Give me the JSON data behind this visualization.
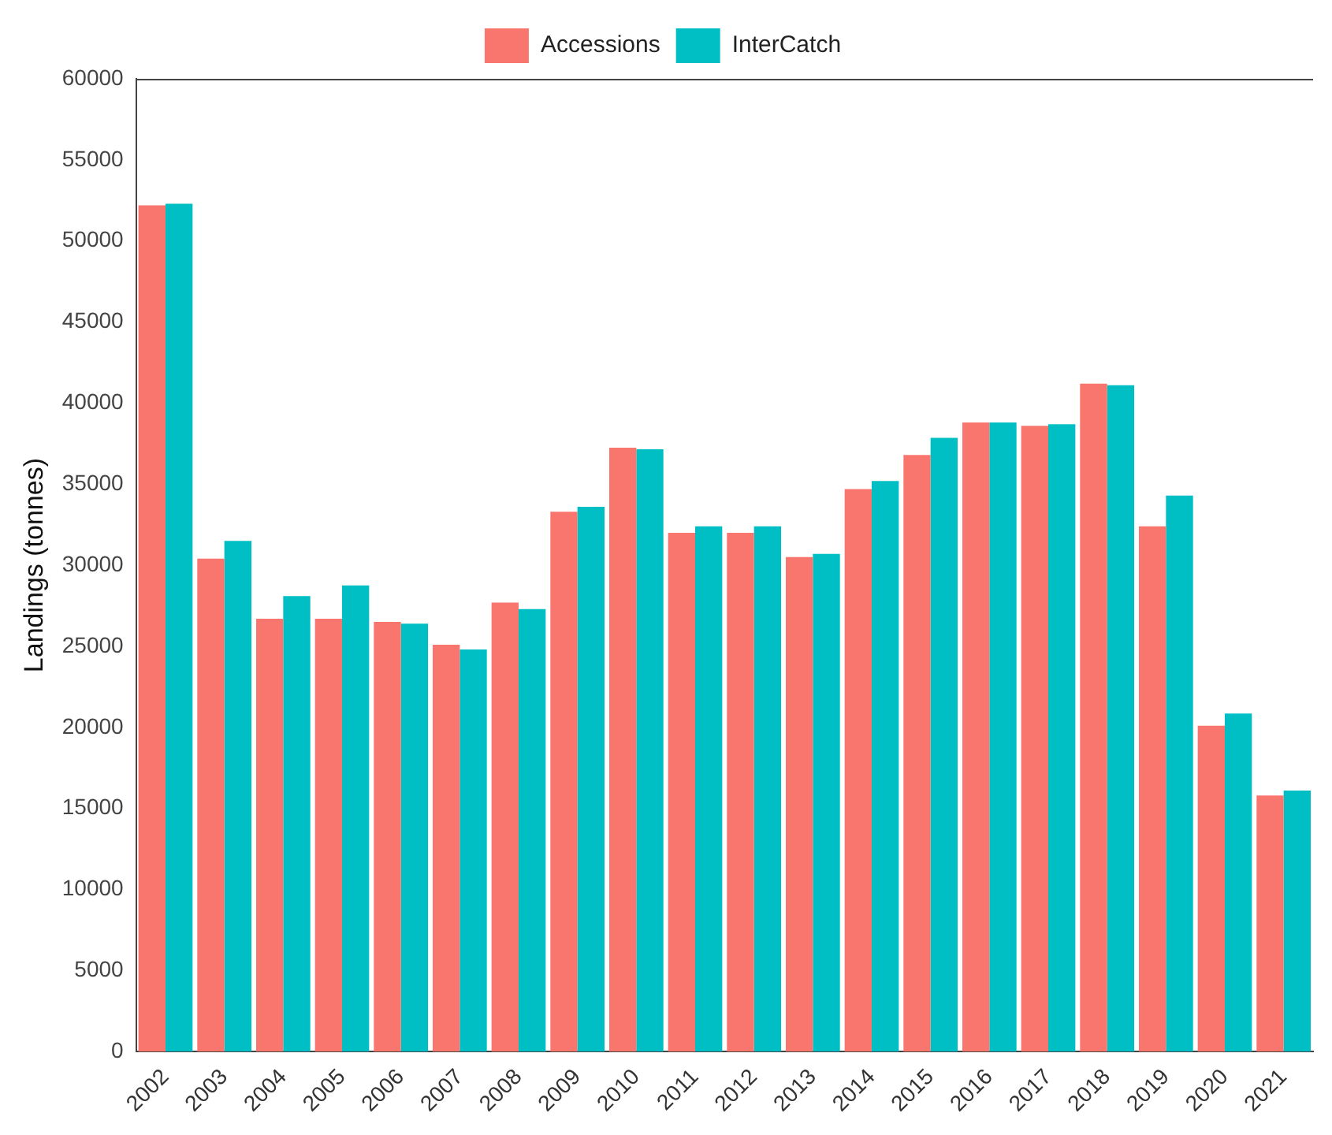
{
  "chart_data": {
    "type": "bar",
    "ylabel": "Landings (tonnes)",
    "categories": [
      "2002",
      "2003",
      "2004",
      "2005",
      "2006",
      "2007",
      "2008",
      "2009",
      "2010",
      "2011",
      "2012",
      "2013",
      "2014",
      "2015",
      "2016",
      "2017",
      "2018",
      "2019",
      "2020",
      "2021"
    ],
    "series": [
      {
        "name": "Accessions",
        "color": "#f8766d",
        "values": [
          52200,
          30400,
          26700,
          26700,
          26500,
          25100,
          27700,
          33300,
          37250,
          32000,
          32000,
          30500,
          34700,
          36800,
          38800,
          38600,
          41200,
          32400,
          20100,
          15800
        ]
      },
      {
        "name": "InterCatch",
        "color": "#00bfc4",
        "values": [
          52300,
          31500,
          28100,
          28750,
          26400,
          24800,
          27300,
          33600,
          37150,
          32400,
          32400,
          30700,
          35200,
          37850,
          38800,
          38700,
          41100,
          34300,
          20850,
          16100
        ]
      }
    ],
    "ylim": [
      0,
      60000
    ],
    "yticks": [
      0,
      5000,
      10000,
      15000,
      20000,
      25000,
      30000,
      35000,
      40000,
      45000,
      50000,
      55000,
      60000
    ],
    "grid": false,
    "legend": "top"
  }
}
